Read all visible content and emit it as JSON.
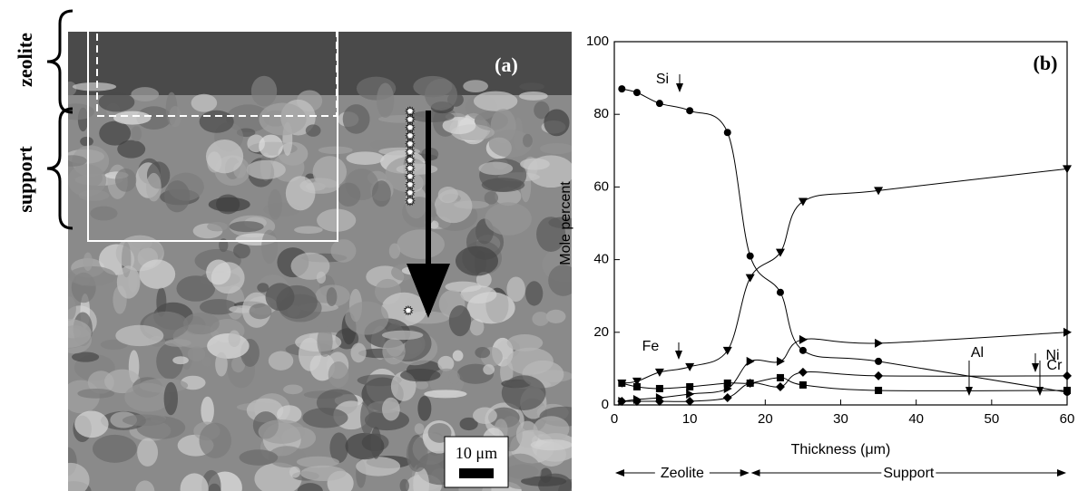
{
  "image_panel": {
    "panel_label": "(a)",
    "zeolite_label": "zeolite",
    "support_label": "support",
    "scale_bar": "10 μm"
  },
  "chart_data": {
    "type": "scatter",
    "panel_label": "(b)",
    "x_label": "Thickness (μm)",
    "y_label": "Mole percent",
    "region_labels": [
      "Zeolite",
      "Support"
    ],
    "x": [
      1,
      3,
      6,
      10,
      15,
      18,
      22,
      25,
      35,
      60
    ],
    "series": [
      {
        "name": "Si",
        "color": "#000000",
        "marker": "circle",
        "values": [
          87,
          86,
          83,
          81,
          75,
          41,
          31,
          15,
          12,
          3.5
        ]
      },
      {
        "name": "Fe",
        "color": "#000000",
        "marker": "triangle-down",
        "values": [
          6,
          6.5,
          9,
          10.5,
          15,
          35,
          42,
          56,
          59,
          65
        ]
      },
      {
        "name": "Cr",
        "color": "#000000",
        "marker": "triangle-right",
        "values": [
          1,
          1.5,
          2,
          3,
          4.5,
          12,
          12,
          18,
          17,
          20
        ]
      },
      {
        "name": "Al",
        "color": "#000000",
        "marker": "square",
        "values": [
          6,
          5,
          4.5,
          5,
          6,
          6,
          7.5,
          5.5,
          4,
          4
        ]
      },
      {
        "name": "Ni",
        "color": "#000000",
        "marker": "diamond",
        "values": [
          1,
          1,
          1,
          1,
          2,
          6,
          5,
          9,
          8,
          8
        ]
      }
    ],
    "xlim": [
      0,
      60
    ],
    "xticks": [
      0,
      10,
      20,
      30,
      40,
      50,
      60
    ],
    "ylim": [
      0,
      100
    ],
    "yticks": [
      0,
      20,
      40,
      60,
      80,
      100
    ]
  }
}
